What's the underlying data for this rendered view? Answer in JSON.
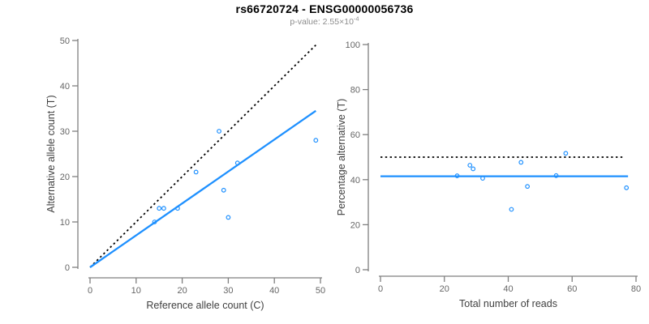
{
  "figure": {
    "title": "rs66720724 - ENSG00000056736",
    "subtitle_prefix": "p-value: 2.55×10",
    "subtitle_exponent": "-4"
  },
  "colors": {
    "accent_blue": "#1E90FF",
    "identity_black": "#000000",
    "axis_line": "#7F7F7F",
    "tick_label": "#666666",
    "axis_title": "#404040",
    "title": "#000000",
    "subtitle": "#8C8C8C",
    "background": "#FFFFFF"
  },
  "chart_data": [
    {
      "type": "scatter",
      "panel": "left",
      "xlabel": "Reference allele count (C)",
      "ylabel": "Alternative allele count (T)",
      "xlim": [
        0,
        50
      ],
      "ylim": [
        0,
        50
      ],
      "xticks": [
        0,
        10,
        20,
        30,
        40,
        50
      ],
      "yticks": [
        0,
        10,
        20,
        30,
        40,
        50
      ],
      "grid": false,
      "legend": "none",
      "marker": "open-circle",
      "points": [
        [
          14,
          10
        ],
        [
          15,
          13
        ],
        [
          16,
          13
        ],
        [
          19,
          13
        ],
        [
          23,
          21
        ],
        [
          28,
          30
        ],
        [
          29,
          17
        ],
        [
          30,
          11
        ],
        [
          32,
          23
        ],
        [
          49,
          28
        ]
      ],
      "lines": [
        {
          "name": "identity-line",
          "style": "dotted",
          "color": "#000000",
          "x": [
            0,
            49
          ],
          "y": [
            0,
            49
          ]
        },
        {
          "name": "fit-line",
          "style": "solid",
          "color": "#1E90FF",
          "x": [
            0,
            49
          ],
          "y": [
            0,
            34.5
          ]
        }
      ]
    },
    {
      "type": "scatter",
      "panel": "right",
      "xlabel": "Total number of reads",
      "ylabel": "Percentage alternative (T)",
      "xlim": [
        0,
        80
      ],
      "ylim": [
        0,
        100
      ],
      "xticks": [
        0,
        20,
        40,
        60,
        80
      ],
      "yticks": [
        0,
        20,
        40,
        60,
        80,
        100
      ],
      "grid": false,
      "legend": "none",
      "marker": "open-circle",
      "points": [
        [
          24,
          41.7
        ],
        [
          28,
          46.4
        ],
        [
          29,
          44.8
        ],
        [
          32,
          40.6
        ],
        [
          41,
          26.8
        ],
        [
          44,
          47.7
        ],
        [
          46,
          37.0
        ],
        [
          55,
          41.8
        ],
        [
          58,
          51.7
        ],
        [
          77,
          36.4
        ]
      ],
      "lines": [
        {
          "name": "expected-50-percent-line",
          "style": "dotted",
          "color": "#000000",
          "x": [
            0,
            76
          ],
          "y": [
            50,
            50
          ]
        },
        {
          "name": "fit-line",
          "style": "solid",
          "color": "#1E90FF",
          "x": [
            0,
            77.5
          ],
          "y": [
            41.5,
            41.5
          ]
        }
      ]
    }
  ]
}
